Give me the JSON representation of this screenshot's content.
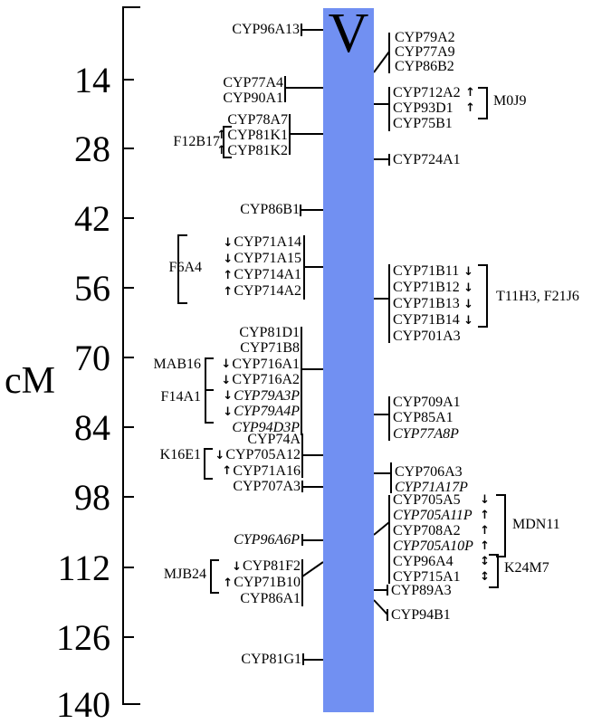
{
  "figure": {
    "unit_label": "cM",
    "chromosome_name": "V",
    "bar_color": "#7190F2",
    "line_color": "#000000"
  },
  "ruler": {
    "labels": [
      "14",
      "28",
      "42",
      "56",
      "70",
      "84",
      "98",
      "112",
      "126",
      "140"
    ]
  },
  "left_groups": [
    {
      "id": "cyp96a13",
      "rows": [
        {
          "text": "CYP96A13"
        }
      ]
    },
    {
      "id": "cyp77a4",
      "rows": [
        {
          "text": "CYP77A4"
        },
        {
          "text": "CYP90A1"
        }
      ]
    },
    {
      "id": "f12b17-genes",
      "rows": [
        {
          "text": "CYP78A7"
        },
        {
          "text": "CYP81K1",
          "arrow": "up"
        },
        {
          "text": "CYP81K2",
          "arrow": "up"
        }
      ]
    },
    {
      "id": "cyp86b1",
      "rows": [
        {
          "text": "CYP86B1"
        }
      ]
    },
    {
      "id": "f6a4-genes",
      "rows": [
        {
          "text": "CYP71A14",
          "arrow": "down"
        },
        {
          "text": "CYP71A15",
          "arrow": "down"
        },
        {
          "text": "CYP714A1",
          "arrow": "up"
        },
        {
          "text": "CYP714A2",
          "arrow": "up"
        }
      ]
    },
    {
      "id": "mab16-f14a1-genes",
      "rows": [
        {
          "text": "CYP81D1"
        },
        {
          "text": "CYP71B8"
        },
        {
          "text": "CYP716A1",
          "arrow": "down"
        },
        {
          "text": "CYP716A2",
          "arrow": "down"
        },
        {
          "text": "CYP79A3P",
          "arrow": "down",
          "italic": true
        },
        {
          "text": "CYP79A4P",
          "arrow": "down",
          "italic": true
        },
        {
          "text": "CYP94D3P",
          "italic": true
        }
      ]
    },
    {
      "id": "k16e1-genes",
      "rows": [
        {
          "text": "CYP74A"
        },
        {
          "text": "CYP705A12",
          "arrow": "down"
        },
        {
          "text": "CYP71A16",
          "arrow": "up"
        }
      ]
    },
    {
      "id": "cyp707a3",
      "rows": [
        {
          "text": "CYP707A3"
        }
      ]
    },
    {
      "id": "cyp96a6p",
      "rows": [
        {
          "text": "CYP96A6P",
          "italic": true
        }
      ]
    },
    {
      "id": "mjb24-genes",
      "rows": [
        {
          "text": "CYP81F2",
          "arrow": "down"
        },
        {
          "text": "CYP71B10",
          "arrow": "up"
        },
        {
          "text": "CYP86A1"
        }
      ]
    },
    {
      "id": "cyp81g1",
      "rows": [
        {
          "text": "CYP81G1"
        }
      ]
    }
  ],
  "right_groups": [
    {
      "id": "top-trio",
      "rows": [
        {
          "text": "CYP79A2"
        },
        {
          "text": "CYP77A9"
        },
        {
          "text": "CYP86B2"
        }
      ]
    },
    {
      "id": "m0j9-genes",
      "rows": [
        {
          "text": "CYP712A2",
          "arrow": "up",
          "arrow_after": true
        },
        {
          "text": "CYP93D1",
          "arrow": "up",
          "arrow_after": true
        },
        {
          "text": "CYP75B1"
        }
      ]
    },
    {
      "id": "cyp724a1",
      "rows": [
        {
          "text": "CYP724A1"
        }
      ]
    },
    {
      "id": "t11h3-genes",
      "rows": [
        {
          "text": "CYP71B11",
          "arrow": "down",
          "arrow_after": true
        },
        {
          "text": "CYP71B12",
          "arrow": "down",
          "arrow_after": true
        },
        {
          "text": "CYP71B13",
          "arrow": "down",
          "arrow_after": true
        },
        {
          "text": "CYP71B14",
          "arrow": "down",
          "arrow_after": true
        },
        {
          "text": "CYP701A3"
        }
      ]
    },
    {
      "id": "cyp709a1-trio",
      "rows": [
        {
          "text": "CYP709A1"
        },
        {
          "text": "CYP85A1"
        },
        {
          "text": "CYP77A8P",
          "italic": true
        }
      ]
    },
    {
      "id": "cyp706a3-duo",
      "rows": [
        {
          "text": "CYP706A3"
        },
        {
          "text": "CYP71A17P",
          "italic": true
        }
      ]
    },
    {
      "id": "mdn11-k24m7-genes",
      "rows": [
        {
          "text": "CYP705A5",
          "arrow": "down",
          "arrow_after": true
        },
        {
          "text": "CYP705A11P",
          "arrow": "up",
          "arrow_after": true,
          "italic": true
        },
        {
          "text": "CYP708A2",
          "arrow": "up",
          "arrow_after": true
        },
        {
          "text": "CYP705A10P",
          "arrow": "up",
          "arrow_after": true,
          "italic": true
        },
        {
          "text": "CYP96A4",
          "arrow": "updown",
          "arrow_after": true
        },
        {
          "text": "CYP715A1",
          "arrow": "updown",
          "arrow_after": true
        }
      ]
    },
    {
      "id": "cyp89a3",
      "rows": [
        {
          "text": "CYP89A3"
        }
      ]
    },
    {
      "id": "cyp94b1",
      "rows": [
        {
          "text": "CYP94B1"
        }
      ]
    }
  ],
  "annotations": [
    {
      "id": "f12b17",
      "label": "F12B17"
    },
    {
      "id": "f6a4",
      "label": "F6A4"
    },
    {
      "id": "mab16",
      "label": "MAB16"
    },
    {
      "id": "f14a1",
      "label": "F14A1"
    },
    {
      "id": "k16e1",
      "label": "K16E1"
    },
    {
      "id": "mjb24",
      "label": "MJB24"
    },
    {
      "id": "m0j9",
      "label": "M0J9"
    },
    {
      "id": "t11h3-f21j6",
      "label": "T11H3, F21J6"
    },
    {
      "id": "mdn11",
      "label": "MDN11"
    },
    {
      "id": "k24m7",
      "label": "K24M7"
    }
  ]
}
